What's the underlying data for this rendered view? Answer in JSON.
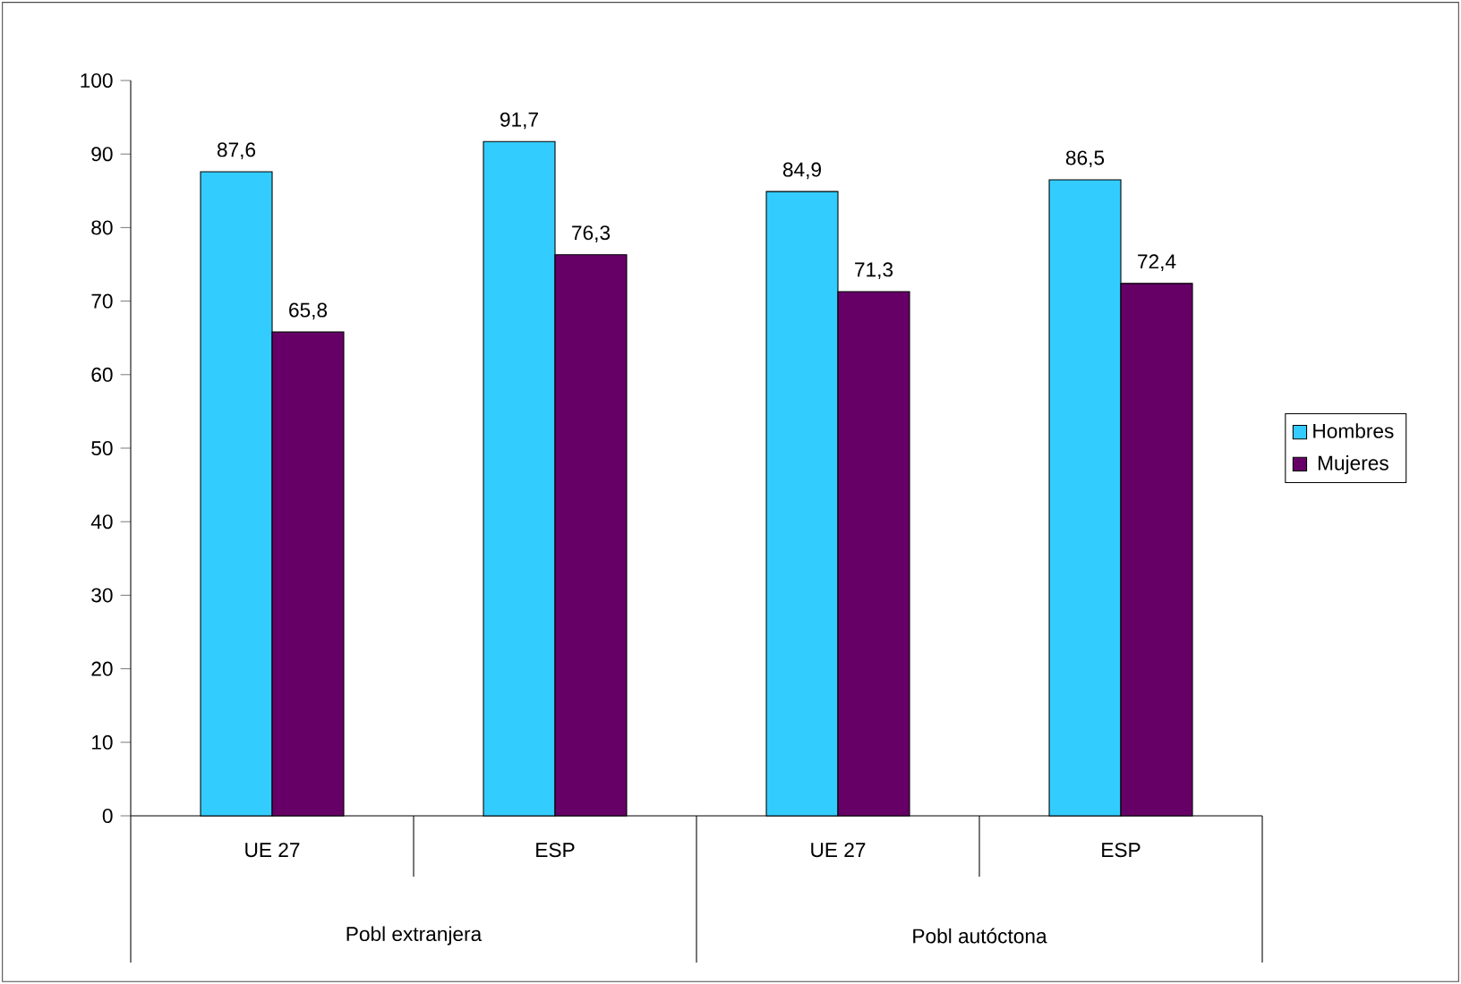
{
  "chart_data": {
    "type": "bar",
    "categories": [
      "UE 27",
      "ESP",
      "UE 27",
      "ESP"
    ],
    "series": [
      {
        "name": "Hombres",
        "color": "#33ccff",
        "values": [
          87.6,
          91.7,
          84.9,
          86.5
        ],
        "value_labels": [
          "87,6",
          "91,7",
          "84,9",
          "86,5"
        ]
      },
      {
        "name": "Mujeres",
        "color": "#660066",
        "values": [
          65.8,
          76.3,
          71.3,
          72.4
        ],
        "value_labels": [
          "65,8",
          "76,3",
          "71,3",
          "72,4"
        ]
      }
    ],
    "ylim": [
      0,
      100
    ],
    "yticks": [
      0,
      10,
      20,
      30,
      40,
      50,
      60,
      70,
      80,
      90,
      100
    ],
    "legend": "right",
    "annotations": [
      "Pobl extranjera",
      "Pobl autóctona"
    ]
  }
}
